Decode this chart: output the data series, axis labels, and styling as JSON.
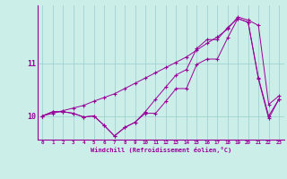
{
  "xlabel": "Windchill (Refroidissement éolien,°C)",
  "background_color": "#cceee8",
  "line_color": "#990099",
  "grid_color": "#99cccc",
  "x_labels": [
    "0",
    "1",
    "2",
    "3",
    "4",
    "5",
    "6",
    "7",
    "8",
    "9",
    "10",
    "11",
    "12",
    "13",
    "14",
    "15",
    "16",
    "17",
    "18",
    "19",
    "20",
    "21",
    "22",
    "23"
  ],
  "y_ticks": [
    10,
    11
  ],
  "ylim": [
    9.55,
    12.1
  ],
  "xlim": [
    -0.5,
    23.5
  ],
  "s1": [
    10.0,
    10.05,
    10.1,
    10.15,
    10.2,
    10.28,
    10.35,
    10.42,
    10.52,
    10.62,
    10.72,
    10.82,
    10.92,
    11.02,
    11.12,
    11.25,
    11.38,
    11.5,
    11.65,
    11.88,
    11.82,
    11.72,
    10.22,
    10.38
  ],
  "s2": [
    10.0,
    10.08,
    10.08,
    10.05,
    9.98,
    10.0,
    9.82,
    9.62,
    9.78,
    9.88,
    10.05,
    10.05,
    10.28,
    10.52,
    10.52,
    10.98,
    11.08,
    11.08,
    11.48,
    11.85,
    11.78,
    10.72,
    10.0,
    10.32
  ],
  "s3": [
    10.0,
    10.08,
    10.08,
    10.05,
    9.98,
    10.0,
    9.82,
    9.62,
    9.78,
    9.88,
    10.08,
    10.32,
    10.55,
    10.78,
    10.88,
    11.28,
    11.45,
    11.45,
    11.68,
    11.85,
    11.78,
    10.7,
    9.95,
    10.32
  ]
}
